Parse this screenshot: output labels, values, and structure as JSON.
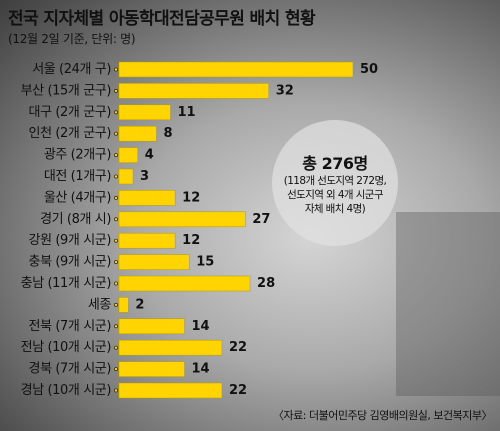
{
  "title": "전국 지자체별 아동학대전담공무원 배치 현황",
  "subtitle": "(12월 2일 기준, 단위: 명)",
  "total": {
    "main": "총 276명",
    "note_lines": [
      "(118개 선도지역 272명,",
      "선도지역 외 4개 시군구",
      "자체 배치 4명)"
    ]
  },
  "source": "〈자료: 더불어민주당 김영배의원실, 보건복지부〉",
  "colors": {
    "bar": "#ffd400",
    "text": "#111111"
  },
  "chart_data": {
    "type": "bar",
    "orientation": "horizontal",
    "title": "전국 지자체별 아동학대전담공무원 배치 현황",
    "unit": "명",
    "categories": [
      "서울 (24개 구)",
      "부산 (15개 군구)",
      "대구 (2개 군구)",
      "인천 (2개 군구)",
      "광주 (2개구)",
      "대전 (1개구)",
      "울산 (4개구)",
      "경기 (8개 시)",
      "강원 (9개 시군)",
      "충북 (9개 시군)",
      "충남 (11개 시군)",
      "세종",
      "전북 (7개 시군)",
      "전남 (10개 시군)",
      "경북 (7개 시군)",
      "경남 (10개 시군)"
    ],
    "values": [
      50,
      32,
      11,
      8,
      4,
      3,
      12,
      27,
      12,
      15,
      28,
      2,
      14,
      22,
      14,
      22
    ],
    "xlim": [
      0,
      50
    ],
    "grid": false,
    "data_labels": true
  }
}
